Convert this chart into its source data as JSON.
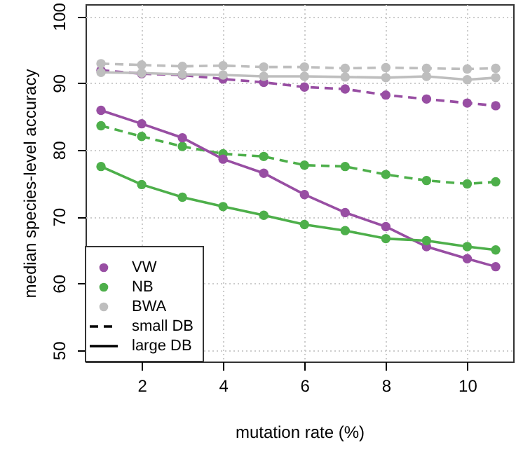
{
  "chart_data": {
    "type": "line",
    "xlabel": "mutation rate (%)",
    "ylabel": "median species-level accuracy",
    "x": [
      1,
      2,
      3,
      4,
      5,
      6,
      7,
      8,
      9,
      10,
      10.7
    ],
    "xlim": [
      0.62,
      11.13
    ],
    "xticks": [
      2,
      4,
      6,
      8,
      10
    ],
    "ylim": [
      48.3,
      101.8
    ],
    "yticks": [
      50,
      60,
      70,
      80,
      90,
      100
    ],
    "grid": true,
    "legend": "bottom left",
    "marker": "circle",
    "annotations": [
      "small DB",
      "large DB"
    ],
    "series": [
      {
        "name": "VW",
        "color": "#984ea3",
        "line_style": "dashed",
        "values": [
          91.9,
          91.4,
          91.2,
          90.6,
          90.1,
          89.4,
          89.1,
          88.2,
          87.6,
          87.0,
          86.6
        ]
      },
      {
        "name": "NB",
        "color": "#4daf4a",
        "line_style": "dashed",
        "values": [
          83.6,
          82.0,
          80.5,
          79.4,
          79.0,
          77.7,
          77.5,
          76.3,
          75.4,
          74.9,
          75.2
        ]
      },
      {
        "name": "BWA",
        "color": "#bebebe",
        "line_style": "dashed",
        "values": [
          92.9,
          92.7,
          92.5,
          92.6,
          92.4,
          92.4,
          92.2,
          92.3,
          92.2,
          92.1,
          92.2
        ]
      },
      {
        "color": "#984ea3",
        "line_style": "solid",
        "values": [
          85.9,
          83.9,
          81.8,
          78.6,
          76.5,
          73.3,
          70.6,
          68.5,
          65.5,
          63.7,
          62.5
        ]
      },
      {
        "color": "#4daf4a",
        "line_style": "solid",
        "values": [
          77.5,
          74.8,
          72.9,
          71.5,
          70.2,
          68.8,
          67.9,
          66.7,
          66.4,
          65.5,
          65.0
        ]
      },
      {
        "color": "#bebebe",
        "line_style": "solid",
        "values": [
          91.6,
          91.5,
          91.3,
          91.2,
          91.0,
          91.0,
          90.9,
          90.8,
          91.0,
          90.5,
          90.8
        ]
      }
    ]
  }
}
